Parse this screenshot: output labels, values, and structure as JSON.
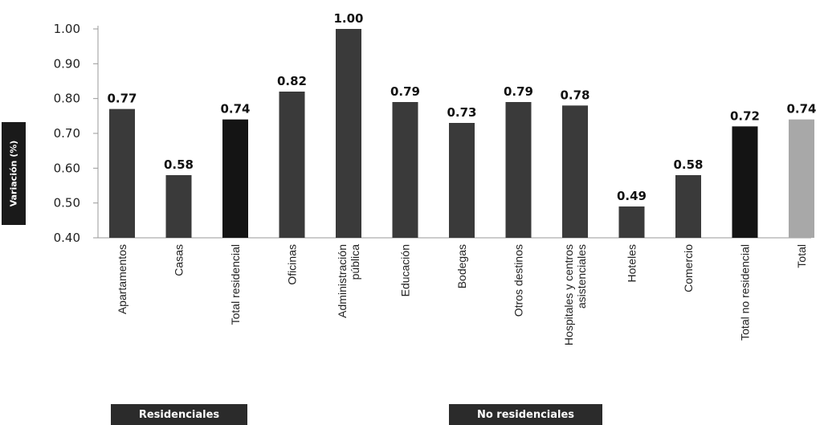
{
  "chart_data": {
    "type": "bar",
    "title": "",
    "xlabel": "",
    "ylabel": "Variación (%)",
    "ylim": [
      0.4,
      1.0
    ],
    "yticks": [
      "1.00",
      "0.90",
      "0.80",
      "0.70",
      "0.60",
      "0.50",
      "0.40"
    ],
    "ytick_values": [
      1.0,
      0.9,
      0.8,
      0.7,
      0.6,
      0.5,
      0.4
    ],
    "grid": false,
    "categories": [
      [
        "Apartamentos"
      ],
      [
        "Casas"
      ],
      [
        "Total residencial"
      ],
      [
        "Oficinas"
      ],
      [
        "Administración",
        "pública"
      ],
      [
        "Educación"
      ],
      [
        "Bodegas"
      ],
      [
        "Otros destinos"
      ],
      [
        "Hospitales y centros",
        "asistenciales"
      ],
      [
        "Hoteles"
      ],
      [
        "Comercio"
      ],
      [
        "Total no residencial"
      ],
      [
        "Total"
      ]
    ],
    "values": [
      0.77,
      0.58,
      0.74,
      0.82,
      1.0,
      0.79,
      0.73,
      0.79,
      0.78,
      0.49,
      0.58,
      0.72,
      0.74
    ],
    "value_labels": [
      "0.77",
      "0.58",
      "0.74",
      "0.82",
      "1.00",
      "0.79",
      "0.73",
      "0.79",
      "0.78",
      "0.49",
      "0.58",
      "0.72",
      "0.74"
    ],
    "bar_colors": [
      "#3a3a3a",
      "#3a3a3a",
      "#141414",
      "#3a3a3a",
      "#3a3a3a",
      "#3a3a3a",
      "#3a3a3a",
      "#3a3a3a",
      "#3a3a3a",
      "#3a3a3a",
      "#3a3a3a",
      "#141414",
      "#a8a8a8"
    ],
    "groups": [
      "Residenciales",
      "No residenciales"
    ]
  }
}
